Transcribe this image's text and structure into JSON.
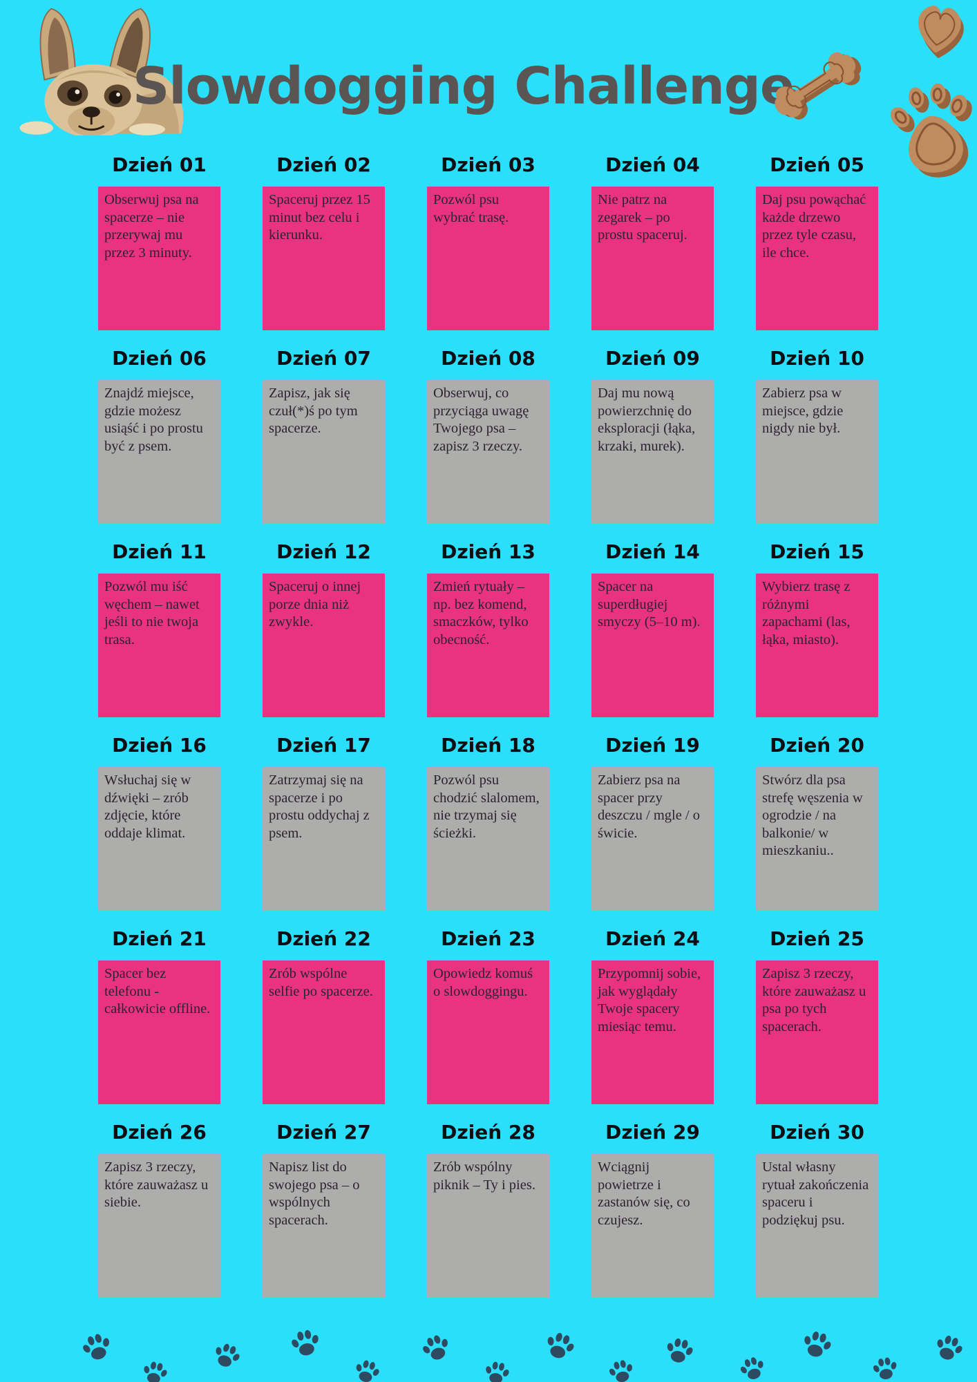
{
  "title": "Slowdogging Challenge",
  "colors": {
    "background": "#2BDEFA",
    "pink": "#E93380",
    "gray": "#ADADAB",
    "title_text": "#5A5452",
    "day_header_text": "#0D0D12",
    "card_text": "#2B2330",
    "cookie_brown": "#C08B5F",
    "cookie_shadow": "#96633D",
    "paw_print_color": "#2E4A60"
  },
  "decorations": {
    "top_left": "french-bulldog-illustration",
    "top_right": [
      "bone-cookie-icon",
      "heart-cookie-icon",
      "paw-cookie-icon"
    ],
    "bottom": "paw-prints"
  },
  "days": [
    {
      "label": "Dzień 01",
      "text": "Obserwuj psa na spacerze – nie przerywaj mu przez 3 minuty."
    },
    {
      "label": "Dzień 02",
      "text": "Spaceruj przez 15 minut bez celu i kierunku."
    },
    {
      "label": "Dzień 03",
      "text": "Pozwól psu wybrać trasę."
    },
    {
      "label": "Dzień 04",
      "text": "Nie patrz na zegarek – po prostu spaceruj."
    },
    {
      "label": "Dzień 05",
      "text": "Daj psu powąchać każde drzewo przez tyle czasu, ile chce."
    },
    {
      "label": "Dzień 06",
      "text": "Znajdź miejsce, gdzie możesz usiąść i po prostu być z psem."
    },
    {
      "label": "Dzień 07",
      "text": "Zapisz, jak się czuł(*)ś po tym spacerze."
    },
    {
      "label": "Dzień 08",
      "text": "Obserwuj, co przyciąga uwagę Twojego psa – zapisz 3 rzeczy."
    },
    {
      "label": "Dzień 09",
      "text": "Daj mu nową powierzchnię do eksploracji (łąka, krzaki, murek)."
    },
    {
      "label": "Dzień 10",
      "text": "Zabierz psa w miejsce, gdzie nigdy nie był."
    },
    {
      "label": "Dzień 11",
      "text": "Pozwól mu iść węchem – nawet jeśli to nie twoja trasa."
    },
    {
      "label": "Dzień 12",
      "text": "Spaceruj o innej porze dnia niż zwykle."
    },
    {
      "label": "Dzień 13",
      "text": "Zmień rytuały – np. bez komend, smaczków, tylko obecność."
    },
    {
      "label": "Dzień 14",
      "text": "Spacer na superdługiej smyczy (5–10 m)."
    },
    {
      "label": "Dzień 15",
      "text": "Wybierz trasę z różnymi zapachami (las, łąka, miasto)."
    },
    {
      "label": "Dzień 16",
      "text": "Wsłuchaj się w dźwięki – zrób zdjęcie, które oddaje klimat."
    },
    {
      "label": "Dzień 17",
      "text": "Zatrzymaj się na spacerze i po prostu oddychaj z psem."
    },
    {
      "label": "Dzień 18",
      "text": "Pozwól psu chodzić slalomem, nie trzymaj się ścieżki."
    },
    {
      "label": "Dzień 19",
      "text": "Zabierz psa na spacer przy deszczu / mgle / o świcie."
    },
    {
      "label": "Dzień 20",
      "text": "Stwórz dla psa strefę węszenia w ogrodzie / na balkonie/ w mieszkaniu.."
    },
    {
      "label": "Dzień 21",
      "text": "Spacer bez telefonu - całkowicie offline."
    },
    {
      "label": "Dzień 22",
      "text": "Zrób wspólne selfie po spacerze."
    },
    {
      "label": "Dzień 23",
      "text": "Opowiedz komuś o slowdoggingu."
    },
    {
      "label": "Dzień 24",
      "text": "Przypomnij sobie, jak wyglądały Twoje spacery miesiąc temu."
    },
    {
      "label": "Dzień 25",
      "text": "Zapisz 3 rzeczy, które zauważasz u psa po tych spacerach."
    },
    {
      "label": "Dzień 26",
      "text": "Zapisz 3 rzeczy, które zauważasz u siebie."
    },
    {
      "label": "Dzień 27",
      "text": "Napisz list do swojego psa – o wspólnych spacerach."
    },
    {
      "label": "Dzień 28",
      "text": "Zrób wspólny piknik – Ty i pies."
    },
    {
      "label": "Dzień 29",
      "text": "Wciągnij powietrze i zastanów się, co czujesz."
    },
    {
      "label": "Dzień 30",
      "text": "Ustal własny rytuał zakończenia spaceru i podziękuj psu."
    }
  ]
}
